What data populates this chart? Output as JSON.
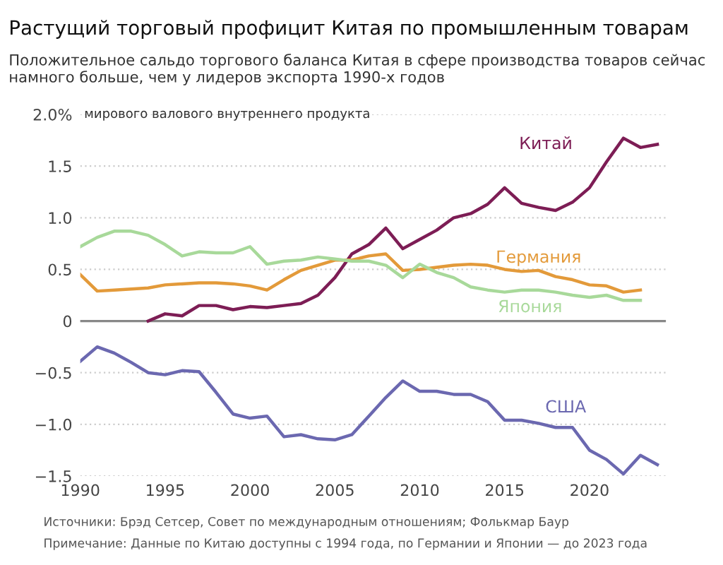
{
  "chart_data": {
    "type": "line",
    "title": "Растущий торговый профицит Китая по промышленным товарам",
    "subtitle": "Положительное сальдо торгового баланса Китая в сфере производства товаров сейчас намного больше, чем у лидеров экспорта 1990-х годов",
    "ylabel": "мирового валового внутреннего продукта",
    "annotations": [
      "Источники: Брэд Сетсер, Совет по международным отношениям; Фолькмар Баур",
      "Примечание: Данные по Китаю доступны с 1994 года, по Германии и Японии — до 2023 года"
    ],
    "series": [
      {
        "name": "Китай",
        "color": "#7d1d55",
        "x": [
          1994,
          1995,
          1996,
          1997,
          1998,
          1999,
          2000,
          2001,
          2002,
          2003,
          2004,
          2005,
          2006,
          2007,
          2008,
          2009,
          2010,
          2011,
          2012,
          2013,
          2014,
          2015,
          2016,
          2017,
          2018,
          2019,
          2020,
          2021,
          2022,
          2023,
          2024
        ],
        "values": [
          0,
          0.07,
          0.05,
          0.15,
          0.15,
          0.11,
          0.14,
          0.13,
          0.15,
          0.17,
          0.25,
          0.42,
          0.65,
          0.74,
          0.9,
          0.7,
          0.79,
          0.88,
          1.0,
          1.04,
          1.13,
          1.29,
          1.14,
          1.1,
          1.07,
          1.15,
          1.29,
          1.54,
          1.77,
          1.68,
          1.71
        ]
      },
      {
        "name": "Германия",
        "color": "#e39a3a",
        "x": [
          1990,
          1991,
          1992,
          1993,
          1994,
          1995,
          1996,
          1997,
          1998,
          1999,
          2000,
          2001,
          2002,
          2003,
          2004,
          2005,
          2006,
          2007,
          2008,
          2009,
          2010,
          2011,
          2012,
          2013,
          2014,
          2015,
          2016,
          2017,
          2018,
          2019,
          2020,
          2021,
          2022,
          2023
        ],
        "values": [
          0.45,
          0.29,
          0.3,
          0.31,
          0.32,
          0.35,
          0.36,
          0.37,
          0.37,
          0.36,
          0.34,
          0.3,
          0.4,
          0.49,
          0.54,
          0.59,
          0.59,
          0.63,
          0.65,
          0.49,
          0.5,
          0.52,
          0.54,
          0.55,
          0.54,
          0.5,
          0.48,
          0.49,
          0.43,
          0.4,
          0.35,
          0.34,
          0.28,
          0.3
        ]
      },
      {
        "name": "Япония",
        "color": "#a8d99a",
        "x": [
          1990,
          1991,
          1992,
          1993,
          1994,
          1995,
          1996,
          1997,
          1998,
          1999,
          2000,
          2001,
          2002,
          2003,
          2004,
          2005,
          2006,
          2007,
          2008,
          2009,
          2010,
          2011,
          2012,
          2013,
          2014,
          2015,
          2016,
          2017,
          2018,
          2019,
          2020,
          2021,
          2022,
          2023
        ],
        "values": [
          0.72,
          0.81,
          0.87,
          0.87,
          0.83,
          0.74,
          0.63,
          0.67,
          0.66,
          0.66,
          0.72,
          0.55,
          0.58,
          0.59,
          0.62,
          0.6,
          0.58,
          0.58,
          0.54,
          0.42,
          0.55,
          0.47,
          0.42,
          0.33,
          0.3,
          0.28,
          0.3,
          0.3,
          0.28,
          0.25,
          0.23,
          0.25,
          0.2,
          0.2
        ]
      },
      {
        "name": "США",
        "color": "#6b68b0",
        "x": [
          1990,
          1991,
          1992,
          1993,
          1994,
          1995,
          1996,
          1997,
          1998,
          1999,
          2000,
          2001,
          2002,
          2003,
          2004,
          2005,
          2006,
          2007,
          2008,
          2009,
          2010,
          2011,
          2012,
          2013,
          2014,
          2015,
          2016,
          2017,
          2018,
          2019,
          2020,
          2021,
          2022,
          2023,
          2024
        ],
        "values": [
          -0.39,
          -0.25,
          -0.31,
          -0.4,
          -0.5,
          -0.52,
          -0.48,
          -0.49,
          -0.69,
          -0.9,
          -0.94,
          -0.92,
          -1.12,
          -1.1,
          -1.14,
          -1.15,
          -1.1,
          -0.92,
          -0.74,
          -0.58,
          -0.68,
          -0.68,
          -0.71,
          -0.71,
          -0.78,
          -0.96,
          -0.96,
          -0.99,
          -1.03,
          -1.03,
          -1.25,
          -1.34,
          -1.48,
          -1.3,
          -1.39
        ]
      }
    ],
    "xlim": [
      1990,
      2024.5
    ],
    "xticks": [
      1990,
      1995,
      2000,
      2005,
      2010,
      2015,
      2020
    ],
    "ylim": [
      -1.5,
      2.0
    ],
    "yticks": [
      {
        "value": -1.5,
        "label": "−1.5"
      },
      {
        "value": -1.0,
        "label": "−1.0"
      },
      {
        "value": -0.5,
        "label": "−0.5"
      },
      0,
      0.5,
      {
        "value": 1.0,
        "label": "1.0"
      },
      1.5,
      {
        "value": 2.0,
        "label": "2.0%"
      }
    ],
    "ref_lines": [
      {
        "axis": "y",
        "value": 0,
        "label": null,
        "color": "#888888"
      }
    ],
    "grid": "y",
    "legend": false,
    "marker": "none",
    "line_style": "solid"
  }
}
